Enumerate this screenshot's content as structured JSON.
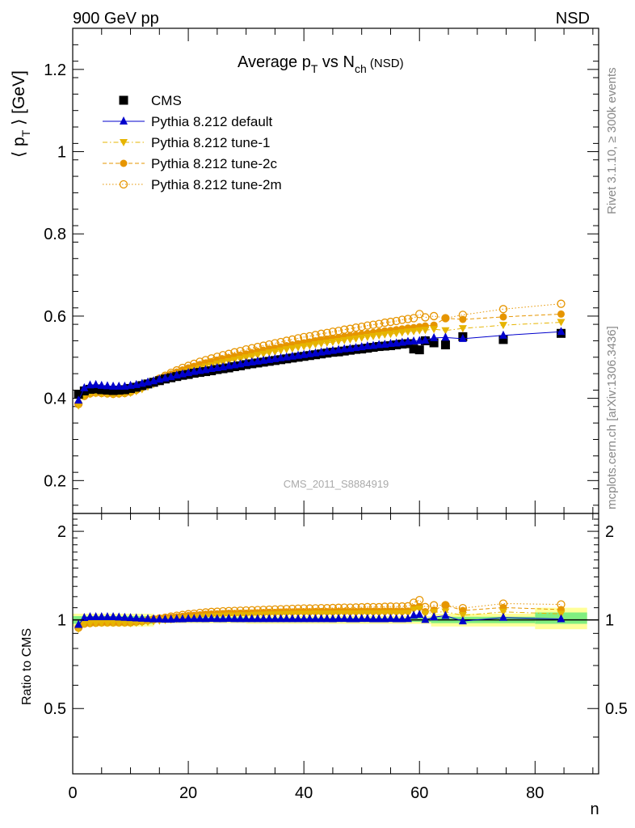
{
  "header": {
    "left": "900 GeV pp",
    "right": "NSD"
  },
  "side_labels": {
    "top": "Rivet 3.1.10, ≥ 300k events",
    "bottom": "mcplots.cern.ch [arXiv:1306.3436]"
  },
  "watermark": "CMS_2011_S8884919",
  "colors": {
    "cms": "#000000",
    "default": "#0000cc",
    "tune1": "#e6b400",
    "tune2c": "#e69500",
    "tune2m": "#e69500",
    "band_green": "#80ee80",
    "band_yellow": "#ffff99"
  },
  "chart_data": [
    {
      "type": "scatter",
      "title_main": "Average p",
      "title_sub_T": "T",
      "title_mid": " vs N",
      "title_sub_ch": "ch",
      "title_tail": " (NSD)",
      "ylabel_main": "⟨ p",
      "ylabel_sub": "T",
      "ylabel_tail": " ⟩ [GeV]",
      "xlim": [
        0,
        91
      ],
      "ylim": [
        0.12,
        1.3
      ],
      "yticks": [
        0.2,
        0.4,
        0.6,
        0.8,
        1,
        1.2
      ],
      "ytick_labels": [
        "0.2",
        "0.4",
        "0.6",
        "0.8",
        "1",
        "1.2"
      ],
      "legend_position": "top-left",
      "legend": [
        "CMS",
        "Pythia 8.212 default",
        "Pythia 8.212 tune-1",
        "Pythia 8.212 tune-2c",
        "Pythia 8.212 tune-2m"
      ],
      "x": [
        1,
        2,
        3,
        4,
        5,
        6,
        7,
        8,
        9,
        10,
        11,
        12,
        13,
        14,
        15,
        16,
        17,
        18,
        19,
        20,
        21,
        22,
        23,
        24,
        25,
        26,
        27,
        28,
        29,
        30,
        31,
        32,
        33,
        34,
        35,
        36,
        37,
        38,
        39,
        40,
        41,
        42,
        43,
        44,
        45,
        46,
        47,
        48,
        49,
        50,
        51,
        52,
        53,
        54,
        55,
        56,
        57,
        58,
        59,
        60,
        61,
        62.5,
        64.5,
        67.5,
        74.5,
        84.5
      ],
      "series": [
        {
          "name": "CMS",
          "key": "cms",
          "marker": "square",
          "values": [
            0.41,
            0.418,
            0.422,
            0.423,
            0.421,
            0.42,
            0.419,
            0.42,
            0.421,
            0.424,
            0.427,
            0.431,
            0.435,
            0.439,
            0.443,
            0.447,
            0.45,
            0.453,
            0.456,
            0.458,
            0.461,
            0.463,
            0.465,
            0.467,
            0.47,
            0.472,
            0.474,
            0.477,
            0.479,
            0.482,
            0.484,
            0.486,
            0.488,
            0.49,
            0.492,
            0.494,
            0.496,
            0.498,
            0.5,
            0.502,
            0.504,
            0.506,
            0.508,
            0.51,
            0.512,
            0.513,
            0.515,
            0.517,
            0.519,
            0.52,
            0.522,
            0.524,
            0.526,
            0.527,
            0.528,
            0.53,
            0.532,
            0.533,
            0.52,
            0.518,
            0.54,
            0.535,
            0.53,
            0.55,
            0.543,
            0.558
          ]
        },
        {
          "name": "Pythia 8.212 default",
          "key": "default",
          "marker": "triangle-up",
          "line": "solid",
          "values": [
            0.395,
            0.425,
            0.432,
            0.433,
            0.431,
            0.43,
            0.429,
            0.429,
            0.429,
            0.431,
            0.433,
            0.436,
            0.439,
            0.442,
            0.446,
            0.449,
            0.452,
            0.456,
            0.459,
            0.462,
            0.465,
            0.467,
            0.469,
            0.472,
            0.474,
            0.476,
            0.479,
            0.481,
            0.483,
            0.486,
            0.488,
            0.49,
            0.492,
            0.494,
            0.496,
            0.498,
            0.5,
            0.502,
            0.504,
            0.506,
            0.508,
            0.51,
            0.512,
            0.514,
            0.516,
            0.518,
            0.52,
            0.521,
            0.523,
            0.525,
            0.527,
            0.528,
            0.53,
            0.531,
            0.533,
            0.534,
            0.536,
            0.538,
            0.539,
            0.54,
            0.541,
            0.547,
            0.548,
            0.545,
            0.553,
            0.562
          ]
        },
        {
          "name": "Pythia 8.212 tune-1",
          "key": "tune1",
          "marker": "triangle-down",
          "line": "dash-dot",
          "values": [
            0.382,
            0.405,
            0.41,
            0.412,
            0.411,
            0.41,
            0.409,
            0.41,
            0.411,
            0.413,
            0.417,
            0.422,
            0.428,
            0.434,
            0.44,
            0.446,
            0.451,
            0.456,
            0.461,
            0.465,
            0.469,
            0.473,
            0.477,
            0.48,
            0.484,
            0.487,
            0.49,
            0.493,
            0.496,
            0.499,
            0.502,
            0.505,
            0.508,
            0.511,
            0.513,
            0.516,
            0.519,
            0.521,
            0.524,
            0.526,
            0.528,
            0.531,
            0.533,
            0.535,
            0.537,
            0.539,
            0.541,
            0.543,
            0.545,
            0.547,
            0.549,
            0.551,
            0.553,
            0.555,
            0.556,
            0.558,
            0.56,
            0.562,
            0.563,
            0.565,
            0.566,
            0.568,
            0.565,
            0.57,
            0.578,
            0.585
          ]
        },
        {
          "name": "Pythia 8.212 tune-2c",
          "key": "tune2c",
          "marker": "circle-filled",
          "line": "dashed",
          "values": [
            0.388,
            0.408,
            0.414,
            0.416,
            0.415,
            0.414,
            0.413,
            0.414,
            0.415,
            0.418,
            0.422,
            0.428,
            0.434,
            0.441,
            0.447,
            0.453,
            0.459,
            0.464,
            0.469,
            0.474,
            0.478,
            0.482,
            0.486,
            0.489,
            0.493,
            0.496,
            0.499,
            0.502,
            0.505,
            0.508,
            0.511,
            0.514,
            0.517,
            0.52,
            0.522,
            0.525,
            0.528,
            0.53,
            0.533,
            0.535,
            0.537,
            0.54,
            0.542,
            0.544,
            0.546,
            0.548,
            0.55,
            0.552,
            0.554,
            0.556,
            0.558,
            0.56,
            0.562,
            0.564,
            0.565,
            0.567,
            0.569,
            0.571,
            0.572,
            0.574,
            0.576,
            0.578,
            0.595,
            0.592,
            0.598,
            0.605
          ]
        },
        {
          "name": "Pythia 8.212 tune-2m",
          "key": "tune2m",
          "marker": "circle-open",
          "line": "dotted",
          "values": [
            0.386,
            0.406,
            0.412,
            0.414,
            0.413,
            0.412,
            0.411,
            0.412,
            0.413,
            0.416,
            0.421,
            0.427,
            0.434,
            0.441,
            0.448,
            0.455,
            0.462,
            0.468,
            0.474,
            0.479,
            0.484,
            0.489,
            0.493,
            0.497,
            0.501,
            0.505,
            0.508,
            0.512,
            0.515,
            0.519,
            0.522,
            0.525,
            0.528,
            0.531,
            0.534,
            0.537,
            0.54,
            0.543,
            0.546,
            0.549,
            0.551,
            0.554,
            0.557,
            0.559,
            0.562,
            0.564,
            0.567,
            0.569,
            0.572,
            0.574,
            0.577,
            0.579,
            0.581,
            0.584,
            0.586,
            0.588,
            0.591,
            0.593,
            0.595,
            0.605,
            0.597,
            0.6,
            0.595,
            0.603,
            0.617,
            0.63
          ]
        }
      ]
    },
    {
      "type": "line",
      "ylabel": "Ratio to CMS",
      "xlabel": "n",
      "xlim": [
        0,
        91
      ],
      "ylim": [
        0.3,
        2.3
      ],
      "yticks": [
        0.5,
        1,
        2
      ],
      "ytick_labels": [
        "0.5",
        "1",
        "2"
      ],
      "xticks": [
        0,
        20,
        40,
        60,
        80
      ],
      "xtick_labels": [
        "0",
        "20",
        "40",
        "60",
        "80"
      ],
      "reference": 1,
      "note": "ratio series = each generator series divided by CMS values",
      "uncertainty_bands": [
        {
          "x_from": 0,
          "x_to": 14,
          "green": [
            0.97,
            1.03
          ],
          "yellow": [
            0.95,
            1.05
          ]
        },
        {
          "x_from": 14,
          "x_to": 30,
          "green": [
            0.985,
            1.02
          ],
          "yellow": [
            0.975,
            1.035
          ]
        },
        {
          "x_from": 30,
          "x_to": 62,
          "green": [
            0.985,
            1.015
          ],
          "yellow": [
            0.97,
            1.03
          ]
        },
        {
          "x_from": 62,
          "x_to": 80,
          "green": [
            0.975,
            1.025
          ],
          "yellow": [
            0.95,
            1.05
          ]
        },
        {
          "x_from": 80,
          "x_to": 89,
          "green": [
            0.97,
            1.06
          ],
          "yellow": [
            0.93,
            1.1
          ]
        }
      ]
    }
  ]
}
